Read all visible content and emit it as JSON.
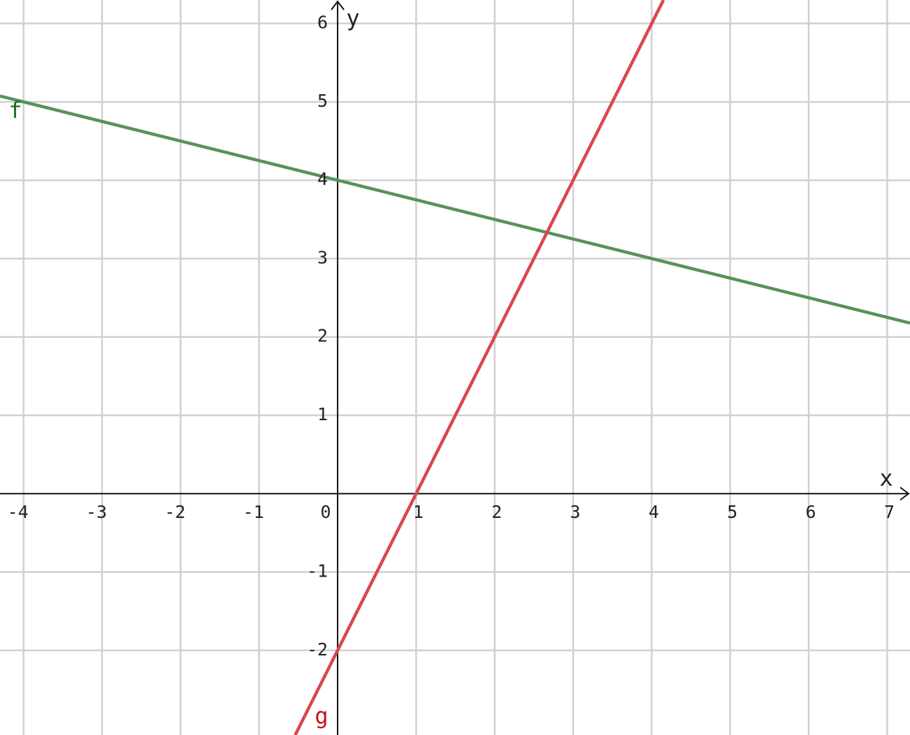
{
  "chart_data": {
    "type": "line",
    "x_label": "x",
    "y_label": "y",
    "xlim": [
      -4.3,
      7.29
    ],
    "ylim": [
      -3.08,
      6.3
    ],
    "xticks": [
      -4,
      -3,
      -2,
      -1,
      0,
      1,
      2,
      3,
      4,
      5,
      6,
      7
    ],
    "yticks": [
      -2,
      -1,
      1,
      2,
      3,
      4,
      5,
      6
    ],
    "grid": true,
    "series": [
      {
        "name": "f",
        "color": "#55935a",
        "label_color": "#1f6b1f",
        "x": [
          -4.3,
          7.29
        ],
        "values": [
          5.075,
          2.1775
        ]
      },
      {
        "name": "g",
        "color": "#d9474b",
        "label_color": "#cc0f14",
        "x": [
          -0.54,
          4.15
        ],
        "values": [
          -3.08,
          6.3
        ]
      }
    ]
  }
}
